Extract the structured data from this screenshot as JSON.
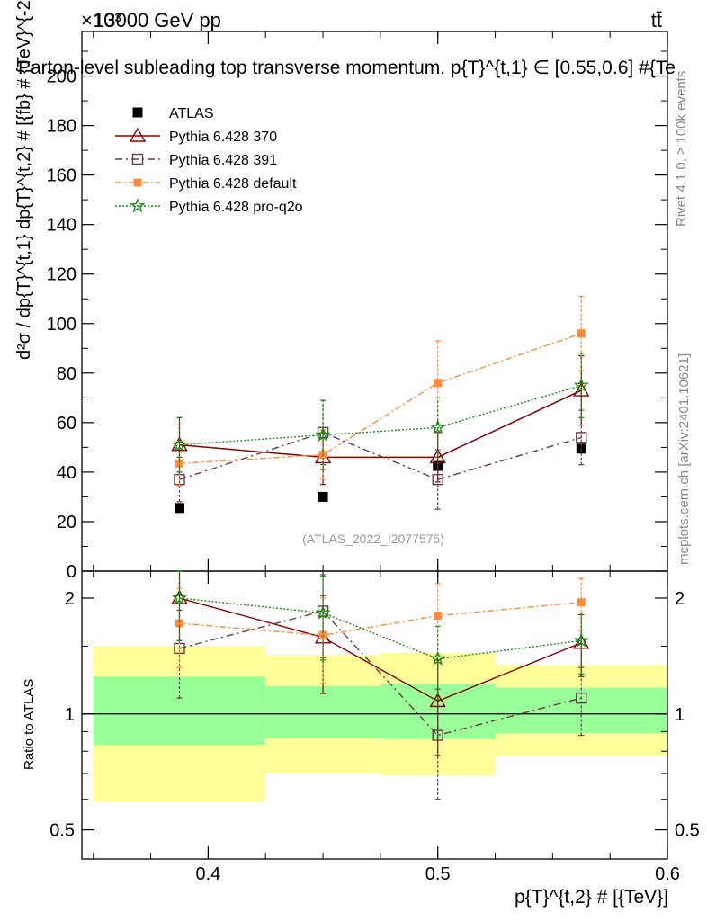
{
  "header": {
    "process": "13000 GeV pp",
    "final_state": "tt̄",
    "exponent": "×10³",
    "title": "Parton-level subleading top transverse momentum, p{T}^{t,1} ∈ [0.55,0.6] #{Te",
    "rivet_label": "Rivet 4.1.0, ≥ 100k events",
    "mcplots_label": "mcplots.cern.ch [arXiv:2401.10621]",
    "analysis_label": "(ATLAS_2022_I2077575)"
  },
  "colors": {
    "atlas": "#000000",
    "p370": "#8b0000",
    "p391": "#6b3a4a",
    "pdefault": "#ff8c3c",
    "pq2o": "#1a8a1a",
    "band_inner": "#99ff99",
    "band_outer": "#ffff99"
  },
  "chart_data": [
    {
      "type": "line",
      "panel": "main",
      "ylabel": "d²σ / dp{T}^{t,1} dp{T}^{t,2} # [{fb} # {TeV}^{-2}]",
      "ylim": [
        0,
        218
      ],
      "yticks": [
        0,
        20,
        40,
        60,
        80,
        100,
        120,
        140,
        160,
        180,
        200
      ],
      "ytick_labels": [
        "0",
        "20",
        "40",
        "60",
        "80",
        "100",
        "120",
        "140",
        "160",
        "180",
        "200"
      ],
      "xlim": [
        0.345,
        0.6
      ],
      "bins": [
        [
          0.35,
          0.425
        ],
        [
          0.425,
          0.475
        ],
        [
          0.475,
          0.525
        ],
        [
          0.525,
          0.6
        ]
      ],
      "legend": [
        {
          "key": "atlas",
          "label": "ATLAS"
        },
        {
          "key": "p370",
          "label": "Pythia 6.428 370"
        },
        {
          "key": "p391",
          "label": "Pythia 6.428 391"
        },
        {
          "key": "pdefault",
          "label": "Pythia 6.428 default"
        },
        {
          "key": "pq2o",
          "label": "Pythia 6.428 pro-q2o"
        }
      ],
      "series": [
        {
          "name": "ATLAS",
          "key": "atlas",
          "x": [
            0.3875,
            0.45,
            0.5,
            0.5625
          ],
          "y": [
            25.5,
            30,
            42.5,
            49.5
          ],
          "err": [
            0,
            0,
            0,
            0
          ]
        },
        {
          "name": "Pythia 6.428 370",
          "key": "p370",
          "x": [
            0.3875,
            0.45,
            0.5,
            0.5625
          ],
          "y": [
            51,
            46,
            46,
            73
          ],
          "err": [
            11,
            11,
            10,
            14
          ]
        },
        {
          "name": "Pythia 6.428 391",
          "key": "p391",
          "x": [
            0.3875,
            0.45,
            0.5,
            0.5625
          ],
          "y": [
            37,
            56,
            37,
            54
          ],
          "err": [
            9,
            13,
            12,
            11
          ]
        },
        {
          "name": "Pythia 6.428 default",
          "key": "pdefault",
          "x": [
            0.3875,
            0.45,
            0.5,
            0.5625
          ],
          "y": [
            43.5,
            47,
            76,
            96
          ],
          "err": [
            9,
            10,
            17,
            15
          ]
        },
        {
          "name": "Pythia 6.428 pro-q2o",
          "key": "pq2o",
          "x": [
            0.3875,
            0.45,
            0.5,
            0.5625
          ],
          "y": [
            51,
            55,
            58,
            75
          ],
          "err": [
            11,
            14,
            12,
            13
          ]
        }
      ]
    },
    {
      "type": "line",
      "panel": "ratio",
      "ylabel": "Ratio to ATLAS",
      "xlabel": "p{T}^{t,2} # [{TeV}]",
      "ylim": [
        0.42,
        2.35
      ],
      "yscale": "log",
      "yticks": [
        0.5,
        1,
        2
      ],
      "ytick_labels": [
        "0.5",
        "1",
        "2"
      ],
      "xticks": [
        0.4,
        0.5,
        0.6
      ],
      "xtick_labels": [
        "0.4",
        "0.5",
        "0.6"
      ],
      "bands": [
        {
          "x": [
            0.35,
            0.425
          ],
          "inner": [
            0.83,
            1.25
          ],
          "outer": [
            0.59,
            1.5
          ]
        },
        {
          "x": [
            0.425,
            0.475
          ],
          "inner": [
            0.865,
            1.18
          ],
          "outer": [
            0.7,
            1.42
          ]
        },
        {
          "x": [
            0.475,
            0.525
          ],
          "inner": [
            0.86,
            1.2
          ],
          "outer": [
            0.69,
            1.44
          ]
        },
        {
          "x": [
            0.525,
            0.6
          ],
          "inner": [
            0.89,
            1.17
          ],
          "outer": [
            0.78,
            1.34
          ]
        }
      ],
      "series": [
        {
          "name": "Pythia 6.428 370",
          "key": "p370",
          "x": [
            0.3875,
            0.45,
            0.5,
            0.5625
          ],
          "y": [
            2.0,
            1.58,
            1.08,
            1.53
          ],
          "err": [
            0.45,
            0.45,
            0.3,
            0.28
          ]
        },
        {
          "name": "Pythia 6.428 391",
          "key": "p391",
          "x": [
            0.3875,
            0.45,
            0.5,
            0.5625
          ],
          "y": [
            1.48,
            1.85,
            0.88,
            1.1
          ],
          "err": [
            0.38,
            0.45,
            0.28,
            0.22
          ]
        },
        {
          "name": "Pythia 6.428 default",
          "key": "pdefault",
          "x": [
            0.3875,
            0.45,
            0.5,
            0.5625
          ],
          "y": [
            1.72,
            1.6,
            1.8,
            1.95
          ],
          "err": [
            0.4,
            0.4,
            0.38,
            0.3
          ]
        },
        {
          "name": "Pythia 6.428 pro-q2o",
          "key": "pq2o",
          "x": [
            0.3875,
            0.45,
            0.5,
            0.5625
          ],
          "y": [
            2.0,
            1.83,
            1.39,
            1.55
          ],
          "err": [
            0.45,
            0.45,
            0.3,
            0.28
          ]
        }
      ]
    }
  ]
}
